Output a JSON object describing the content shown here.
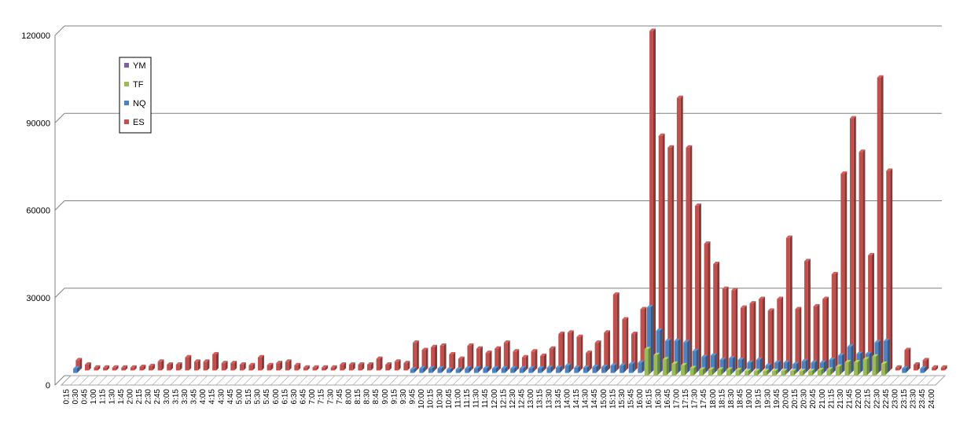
{
  "chart_data": {
    "type": "bar",
    "style": "3d-clustered-column",
    "title": "",
    "xlabel": "",
    "ylabel": "",
    "ylim": [
      0,
      120000
    ],
    "yticks": [
      0,
      30000,
      60000,
      90000,
      120000
    ],
    "grid": true,
    "legend_position": "left",
    "legend_order": [
      "YM",
      "TF",
      "NQ",
      "ES"
    ],
    "colors": {
      "YM": "#7e62a2",
      "TF": "#9bbb59",
      "NQ": "#4f81bd",
      "ES": "#c0504d",
      "grid": "#808080",
      "axis": "#808080",
      "floor": "#a6a6a6"
    },
    "categories": [
      "0:15",
      "0:30",
      "0:45",
      "1:00",
      "1:15",
      "1:30",
      "1:45",
      "2:00",
      "2:15",
      "2:30",
      "2:45",
      "3:00",
      "3:15",
      "3:30",
      "3:45",
      "4:00",
      "4:15",
      "4:30",
      "4:45",
      "5:00",
      "5:15",
      "5:30",
      "5:45",
      "6:00",
      "6:15",
      "6:30",
      "6:45",
      "7:00",
      "7:15",
      "7:30",
      "7:45",
      "8:00",
      "8:15",
      "8:30",
      "8:45",
      "9:00",
      "9:15",
      "9:30",
      "9:45",
      "10:00",
      "10:15",
      "10:30",
      "10:45",
      "11:00",
      "11:15",
      "11:30",
      "11:45",
      "12:00",
      "12:15",
      "12:30",
      "12:45",
      "13:00",
      "13:15",
      "13:30",
      "13:45",
      "14:00",
      "14:15",
      "14:30",
      "14:45",
      "15:00",
      "15:15",
      "15:30",
      "15:45",
      "16:00",
      "16:15",
      "16:30",
      "16:45",
      "17:00",
      "17:15",
      "17:30",
      "17:45",
      "18:00",
      "18:15",
      "18:30",
      "18:45",
      "19:00",
      "19:15",
      "19:30",
      "19:45",
      "20:00",
      "20:15",
      "20:30",
      "20:45",
      "21:00",
      "21:15",
      "21:30",
      "21:45",
      "22:00",
      "22:15",
      "22:30",
      "22:45",
      "23:00",
      "23:15",
      "23:30",
      "23:45",
      "24:00"
    ],
    "series": [
      {
        "name": "YM",
        "values": [
          0,
          0,
          0,
          0,
          0,
          0,
          0,
          0,
          0,
          0,
          0,
          0,
          0,
          0,
          0,
          0,
          0,
          0,
          0,
          0,
          0,
          0,
          0,
          0,
          0,
          0,
          0,
          0,
          0,
          0,
          0,
          0,
          0,
          0,
          0,
          0,
          0,
          0,
          0,
          0,
          0,
          0,
          0,
          0,
          0,
          0,
          0,
          0,
          0,
          0,
          0,
          0,
          0,
          0,
          0,
          0,
          0,
          0,
          0,
          0,
          0,
          0,
          0,
          0,
          0,
          0,
          0,
          0,
          0,
          0,
          0,
          0,
          0,
          0,
          0,
          0,
          0,
          0,
          0,
          0,
          0,
          0,
          0,
          0,
          0,
          0,
          0,
          0,
          0,
          0,
          0,
          0,
          0,
          0,
          0,
          0
        ]
      },
      {
        "name": "TF",
        "values": [
          0,
          0,
          0,
          0,
          0,
          0,
          0,
          0,
          0,
          0,
          0,
          0,
          0,
          0,
          0,
          0,
          0,
          0,
          0,
          0,
          0,
          0,
          0,
          0,
          0,
          0,
          0,
          0,
          0,
          0,
          0,
          0,
          0,
          0,
          0,
          0,
          0,
          0,
          0,
          0,
          0,
          0,
          0,
          0,
          0,
          0,
          0,
          0,
          0,
          0,
          0,
          0,
          0,
          0,
          0,
          0,
          0,
          0,
          0,
          0,
          0,
          0,
          0,
          9000,
          7000,
          5500,
          4000,
          3500,
          2500,
          2000,
          2000,
          2000,
          2000,
          1800,
          1500,
          1500,
          1500,
          1500,
          1500,
          1500,
          1500,
          1500,
          1800,
          2000,
          3000,
          4500,
          4500,
          5500,
          6500,
          4000,
          0,
          0,
          0,
          0,
          0,
          0
        ]
      },
      {
        "name": "NQ",
        "values": [
          1500,
          0,
          0,
          0,
          0,
          0,
          0,
          0,
          0,
          0,
          0,
          0,
          0,
          0,
          0,
          0,
          0,
          0,
          0,
          0,
          0,
          0,
          0,
          0,
          0,
          0,
          0,
          0,
          0,
          0,
          0,
          0,
          0,
          0,
          0,
          0,
          0,
          1200,
          1500,
          1500,
          1500,
          1200,
          1200,
          1500,
          1500,
          1500,
          1500,
          1500,
          1500,
          1500,
          1500,
          1500,
          1800,
          1800,
          2500,
          1800,
          1800,
          2000,
          2000,
          2500,
          2500,
          3000,
          3500,
          22500,
          14500,
          11000,
          11000,
          10500,
          7500,
          5500,
          6000,
          4500,
          5000,
          4500,
          3500,
          4500,
          2500,
          3500,
          3500,
          3000,
          4000,
          3500,
          3500,
          4500,
          6000,
          9000,
          6500,
          6500,
          10500,
          11000,
          0,
          1500,
          0,
          1500,
          0,
          0
        ]
      },
      {
        "name": "ES",
        "values": [
          3500,
          2000,
          1000,
          1000,
          1000,
          1000,
          1000,
          1200,
          1500,
          3000,
          2000,
          2000,
          4500,
          3000,
          3000,
          5500,
          2500,
          2500,
          2000,
          1800,
          4500,
          1800,
          2500,
          3000,
          1800,
          1000,
          1000,
          1000,
          1000,
          2000,
          2000,
          2000,
          2000,
          4000,
          2000,
          3000,
          2500,
          9500,
          7000,
          8000,
          8500,
          5500,
          4000,
          8500,
          7500,
          6000,
          7500,
          9500,
          6500,
          4500,
          6500,
          5000,
          7500,
          12500,
          13000,
          11500,
          6000,
          9500,
          13000,
          26000,
          17500,
          12500,
          21000,
          116500,
          80500,
          76500,
          93500,
          76500,
          56500,
          43500,
          36500,
          28000,
          27500,
          21500,
          23000,
          24500,
          20500,
          24500,
          45500,
          21000,
          37500,
          22000,
          24500,
          33000,
          67500,
          86500,
          75000,
          39500,
          100500,
          68500,
          1000,
          7000,
          2000,
          3500,
          1000,
          1000
        ]
      }
    ]
  }
}
